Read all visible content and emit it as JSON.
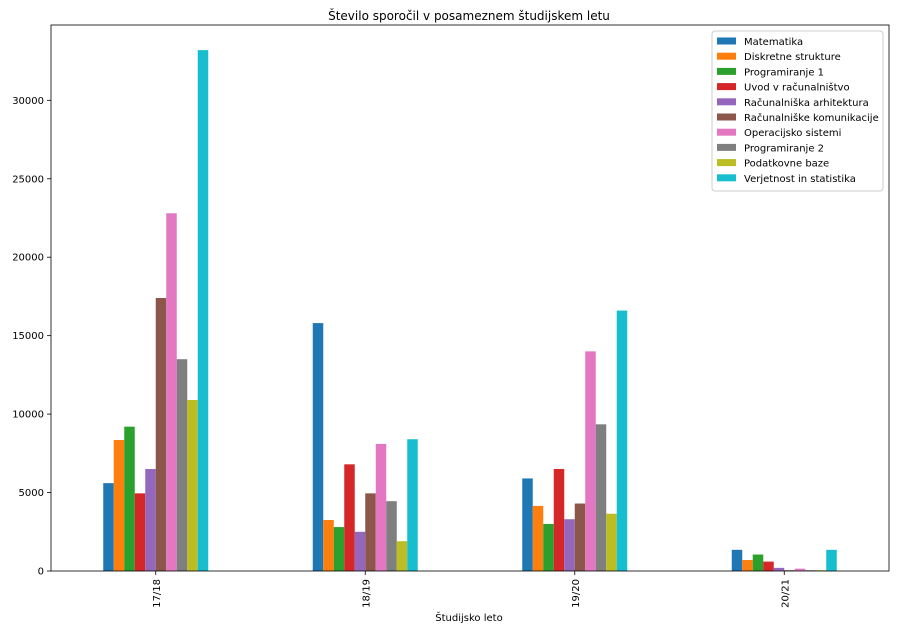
{
  "chart_data": {
    "type": "bar",
    "title": "Število sporočil v posameznem študijskem letu",
    "xlabel": "Študijsko leto",
    "ylabel": "",
    "categories": [
      "17/18",
      "18/19",
      "19/20",
      "20/21"
    ],
    "ylim": [
      0,
      34800
    ],
    "yticks": [
      0,
      5000,
      10000,
      15000,
      20000,
      25000,
      30000
    ],
    "grid": false,
    "legend_position": "top-right",
    "series": [
      {
        "name": "Matematika",
        "color": "#1f77b4",
        "values": [
          5600,
          15800,
          5900,
          1350
        ]
      },
      {
        "name": "Diskretne strukture",
        "color": "#ff7f0e",
        "values": [
          8350,
          3250,
          4150,
          700
        ]
      },
      {
        "name": "Programiranje 1",
        "color": "#2ca02c",
        "values": [
          9200,
          2800,
          3000,
          1050
        ]
      },
      {
        "name": "Uvod v računalništvo",
        "color": "#d62728",
        "values": [
          4950,
          6800,
          6500,
          600
        ]
      },
      {
        "name": "Računalniška arhitektura",
        "color": "#9467bd",
        "values": [
          6500,
          2500,
          3300,
          200
        ]
      },
      {
        "name": "Računalniške komunikacije",
        "color": "#8c564b",
        "values": [
          17400,
          4950,
          4300,
          50
        ]
      },
      {
        "name": "Operacijsko sistemi",
        "color": "#e377c2",
        "values": [
          22800,
          8100,
          14000,
          150
        ]
      },
      {
        "name": "Programiranje 2",
        "color": "#7f7f7f",
        "values": [
          13500,
          4450,
          9350,
          50
        ]
      },
      {
        "name": "Podatkovne baze",
        "color": "#bcbd22",
        "values": [
          10900,
          1900,
          3650,
          50
        ]
      },
      {
        "name": "Verjetnost in statistika",
        "color": "#17becf",
        "values": [
          33200,
          8400,
          16600,
          1350
        ]
      }
    ]
  }
}
